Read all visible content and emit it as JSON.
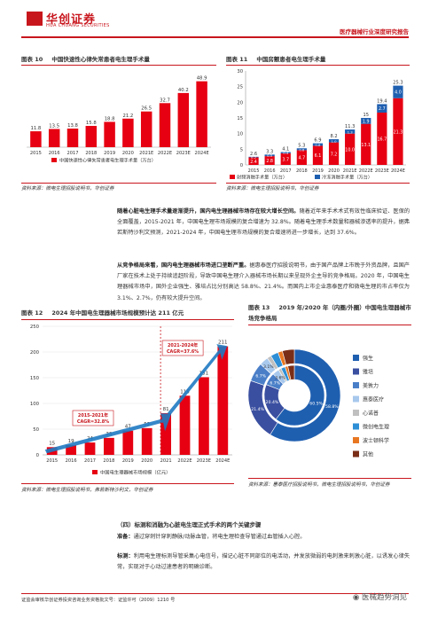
{
  "header": {
    "brand_cn": "华创证券",
    "brand_en": "HUA CHUANG SECURITIES",
    "report_type": "医疗器械行业深度研究报告",
    "brand_color": "#c8161d"
  },
  "fig10": {
    "number": "图表 10",
    "title": "中国快速性心律失常患者电生理手术量",
    "source": "资料来源：微电生理招股说明书，华创证券",
    "chart_data": {
      "type": "bar",
      "categories": [
        "2015",
        "2016",
        "2017",
        "2018",
        "2019",
        "2020",
        "2021E",
        "2022E",
        "2023E",
        "2024E"
      ],
      "series": [
        {
          "name": "中国快速性心律失常患者电生理手术量（万台）",
          "values": [
            11.8,
            13.5,
            13.8,
            15.8,
            18.8,
            21.2,
            26.5,
            32.7,
            40.2,
            48.9
          ]
        }
      ],
      "ylim": [
        0,
        50
      ],
      "color": "#e60012"
    }
  },
  "fig11": {
    "number": "图表 11",
    "title": "中国房颤患者电生理手术量",
    "source": "资料来源：微电生理招股说明书，华创证券",
    "chart_data": {
      "type": "bar",
      "stacked": true,
      "categories": [
        "2015",
        "2016",
        "2017",
        "2018",
        "2019",
        "2020",
        "2021E",
        "2022E",
        "2023E",
        "2024E"
      ],
      "series": [
        {
          "name": "射频消融手术量（万台）",
          "values": [
            2.4,
            2.8,
            3.7,
            4.7,
            6.1,
            7.2,
            10.0,
            13.1,
            16.7,
            21.3
          ],
          "color": "#e60012"
        },
        {
          "name": "冷冻消融手术量（万台）",
          "values": [
            0.2,
            0.5,
            0.4,
            0.6,
            0.8,
            1.0,
            1.3,
            1.9,
            2.7,
            4.0
          ],
          "color": "#1f5fb0"
        }
      ],
      "totals": [
        2.6,
        3.3,
        4.1,
        5.3,
        6.9,
        8.2,
        11.3,
        15.0,
        19.4,
        25.3
      ],
      "ylim": [
        0,
        30
      ],
      "yticks": [
        0,
        5,
        10,
        15,
        20,
        25,
        30
      ]
    }
  },
  "para1": {
    "bold": "随着心脏电生理手术量逐渐提升，国内电生理器械市场存在较大增长空间。",
    "text": "随着近年来手术术式有效性临床验证、医保的全面覆盖，2015-2021 年，中国电生理市场规模的复合增速为 32.8%。随着电生理手术数量和器械渗透率的提升，据弗若斯特沙利文预测，2021-2024 年，中国电生理市场规模的复合增速将进一步增长，达到 37.6%。"
  },
  "para2": {
    "bold": "从竞争格局来看，国内电生理器械市场进口垄断严重。",
    "text": "据惠泰医疗招股说明书，由于国产品牌上市晚于外资品牌，且国产厂家在技术上处于持续追赶阶段，导致中国电生理介入器械市场长期以来呈现外企主导的竞争格局。2020 年，中国电生理器械市场中，国外企业强生、雅培占比分别高达 58.8%、21.4%。而国内上市企业惠泰医疗和微电生理的市占率仅为 3.1%、2.7%，仍有较大提升空间。"
  },
  "fig12": {
    "number": "图表 12",
    "title": "2024 年中国电生理器械市场规模预计达 211 亿元",
    "source": "资料来源：微电生理招股说明书，弗若斯特沙利文，华创证券",
    "annot1_line1": "2015-2021年",
    "annot1_line2": "CAGR=32.8%",
    "annot2_line1": "2021-2024年",
    "annot2_line2": "CAGR=37.6%",
    "chart_data": {
      "type": "bar",
      "categories": [
        "2015",
        "2016",
        "2017",
        "2018",
        "2019",
        "2020",
        "2021",
        "2022E",
        "2023E",
        "2024E"
      ],
      "series": [
        {
          "name": "中国电生理器械市场规模（亿元）",
          "values": [
            15,
            19,
            24,
            33,
            47,
            52,
            81,
            115,
            151,
            211
          ]
        }
      ],
      "ylim": [
        0,
        250
      ],
      "yticks": [
        0,
        50,
        100,
        150,
        200,
        250
      ],
      "color": "#e60012"
    }
  },
  "fig13": {
    "number": "图表 13",
    "title": "2019 年/2020 年（内圈/外圈）中国电生理器械市场竞争格局",
    "source": "资料来源：惠泰医疗招股说明书，微电生理招股说明书，华创证券",
    "chart_data": {
      "type": "pie",
      "subtype": "double-donut",
      "labels": [
        "强生",
        "雅培",
        "美敦力",
        "惠泰医疗",
        "心诺普",
        "微创电生理",
        "波士顿科学",
        "其他"
      ],
      "colors": [
        "#1f5fb0",
        "#3a4fa0",
        "#4a7fc8",
        "#a8c8ec",
        "#c0c0c0",
        "#2e8fd6",
        "#e87722",
        "#7a2e18"
      ],
      "inner_2019": [
        60.5,
        20.4,
        6.7,
        3.6,
        1.5,
        2.3,
        1.5,
        3.5
      ],
      "outer_2020": [
        58.8,
        21.4,
        6.7,
        3.1,
        1.5,
        2.7,
        1.6,
        4.2
      ],
      "inner_labels": [
        "60.5%",
        "20.4%",
        "6.7%",
        "3.6%"
      ],
      "outer_labels": [
        "58.8%",
        "21.4%",
        "6.7%",
        "3.1%"
      ]
    }
  },
  "section4": {
    "title": "（四）标测和消融为心脏电生理正式手术的两个关键步骤",
    "prep_label": "准备：",
    "prep_text": "通过穿刺针穿刺静脉/动脉血管，将电生理检查导管通过血管插入心腔。",
    "map_label": "标测：",
    "map_text": "利用电生理标测导管采集心电信号，描记心脏不同部位的电活动，并发放微弱的电刺激来刺激心脏，以诱发心律失常，实现对于心动过速患者的明确诊断。"
  },
  "footer": {
    "cert": "证监会审核华创证券投资咨询业务资格批文号：证监许可（2009）1210 号",
    "watermark": "医械趋势洞见"
  }
}
